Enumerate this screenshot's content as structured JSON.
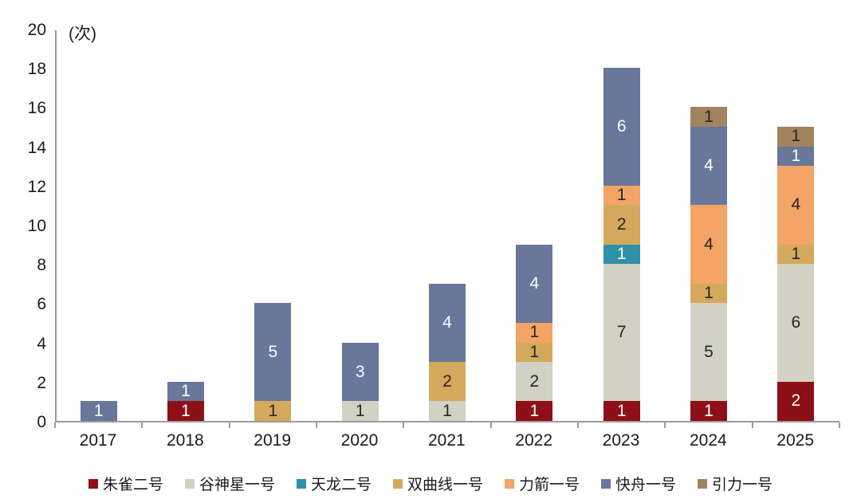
{
  "chart": {
    "unit_label": "(次)",
    "background": "#ffffff",
    "axis_color": "#9b9b9b",
    "text_color": "#1a1a1a"
  },
  "chart_data": {
    "type": "bar",
    "subtype": "stacked-vertical",
    "title": "",
    "unit_label": "(次)",
    "xlabel": "",
    "ylabel": "(次)",
    "categories": [
      "2017",
      "2018",
      "2019",
      "2020",
      "2021",
      "2022",
      "2023",
      "2024",
      "2025"
    ],
    "series": [
      {
        "name": "朱雀二号",
        "color": "#8C1015",
        "label_color": "#ffffff",
        "values": [
          0,
          1,
          0,
          0,
          0,
          1,
          1,
          1,
          2
        ]
      },
      {
        "name": "谷神星一号",
        "color": "#D1D1C4",
        "label_color": "#262626",
        "values": [
          0,
          0,
          0,
          1,
          1,
          2,
          7,
          5,
          6
        ]
      },
      {
        "name": "天龙二号",
        "color": "#2E91A8",
        "label_color": "#ffffff",
        "values": [
          0,
          0,
          0,
          0,
          0,
          0,
          1,
          0,
          0
        ]
      },
      {
        "name": "双曲线一号",
        "color": "#D4A95C",
        "label_color": "#262626",
        "values": [
          0,
          0,
          1,
          0,
          2,
          1,
          2,
          1,
          1
        ]
      },
      {
        "name": "力箭一号",
        "color": "#F3A466",
        "label_color": "#262626",
        "values": [
          0,
          0,
          0,
          0,
          0,
          1,
          1,
          4,
          4
        ]
      },
      {
        "name": "快舟一号",
        "color": "#68779A",
        "label_color": "#ffffff",
        "values": [
          1,
          1,
          5,
          3,
          4,
          4,
          6,
          4,
          1
        ]
      },
      {
        "name": "引力一号",
        "color": "#A28360",
        "label_color": "#262626",
        "values": [
          0,
          0,
          0,
          0,
          0,
          0,
          0,
          1,
          1
        ]
      }
    ],
    "totals": [
      1,
      2,
      6,
      4,
      7,
      9,
      18,
      16,
      15
    ],
    "ylim": [
      0,
      20
    ],
    "yticks": [
      0,
      2,
      4,
      6,
      8,
      10,
      12,
      14,
      16,
      18,
      20
    ],
    "grid": false,
    "legend_position": "bottom",
    "segment_labels_shown": true
  }
}
